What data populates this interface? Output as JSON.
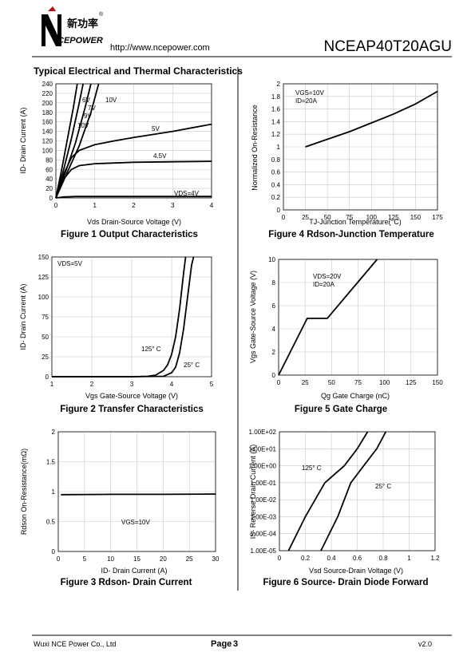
{
  "header": {
    "logo_text": "新功率",
    "logo_brand": "CEPOWER",
    "registered": "®",
    "url": "http://www.ncepower.com",
    "part_number": "NCEAP40T20AGU"
  },
  "section_title": "Typical Electrical and Thermal Characteristics",
  "chart_data": [
    {
      "type": "line",
      "title": "Figure 1 Output Characteristics",
      "xlabel": "Vds Drain-Source Voltage (V)",
      "ylabel": "ID- Drain Current (A)",
      "xlim": [
        0,
        4
      ],
      "ylim": [
        0,
        240
      ],
      "xticks": [
        0,
        1,
        2,
        3,
        4
      ],
      "yticks": [
        0,
        20,
        40,
        60,
        80,
        100,
        120,
        140,
        160,
        180,
        200,
        220,
        240
      ],
      "grid": true,
      "annotations": [
        "10V"
      ],
      "series": [
        {
          "name": "10V",
          "color": "#000000",
          "x": [
            0,
            0.15,
            0.3,
            0.45,
            0.55
          ],
          "values": [
            0,
            60,
            125,
            190,
            240
          ]
        },
        {
          "name": "9V",
          "color": "#000000",
          "x": [
            0,
            0.2,
            0.4,
            0.6,
            0.7
          ],
          "values": [
            0,
            60,
            125,
            200,
            240
          ]
        },
        {
          "name": "7V",
          "color": "#000000",
          "x": [
            0,
            0.25,
            0.5,
            0.75,
            0.9
          ],
          "values": [
            0,
            55,
            115,
            190,
            240
          ]
        },
        {
          "name": "6V",
          "color": "#000000",
          "x": [
            0,
            0.3,
            0.6,
            0.9,
            1.1
          ],
          "values": [
            0,
            55,
            110,
            180,
            240
          ]
        },
        {
          "name": "5V",
          "color": "#000000",
          "x": [
            0,
            0.2,
            0.4,
            0.6,
            1,
            1.5,
            2,
            3,
            4
          ],
          "values": [
            0,
            50,
            85,
            100,
            112,
            120,
            127,
            140,
            155
          ]
        },
        {
          "name": "4.5V",
          "color": "#000000",
          "x": [
            0,
            0.2,
            0.4,
            0.6,
            1,
            2,
            3,
            4
          ],
          "values": [
            0,
            40,
            60,
            68,
            72,
            75,
            76,
            77
          ]
        },
        {
          "name": "VDS=4V",
          "color": "#000000",
          "x": [
            0,
            0.2,
            0.5,
            1,
            2,
            3,
            4
          ],
          "values": [
            0,
            2,
            3,
            3,
            3,
            3,
            3
          ]
        }
      ]
    },
    {
      "type": "line",
      "title": "Figure 2 Transfer Characteristics",
      "xlabel": "Vgs Gate-Source Voltage (V)",
      "ylabel": "ID- Drain Current (A)",
      "xlim": [
        1,
        5
      ],
      "ylim": [
        0,
        150
      ],
      "xticks": [
        1,
        2,
        3,
        4,
        5
      ],
      "yticks": [
        0,
        25,
        50,
        75,
        100,
        125,
        150
      ],
      "grid": true,
      "annotations": [
        "VDS=5V"
      ],
      "series": [
        {
          "name": "125° C",
          "color": "#000000",
          "x": [
            1,
            2,
            3,
            3.4,
            3.6,
            3.8,
            3.9,
            4.0,
            4.1,
            4.2,
            4.3,
            4.35
          ],
          "values": [
            0,
            0,
            0,
            0.5,
            2,
            8,
            15,
            28,
            50,
            85,
            130,
            150
          ]
        },
        {
          "name": "25° C",
          "color": "#000000",
          "x": [
            1,
            2,
            3,
            3.8,
            4,
            4.1,
            4.2,
            4.3,
            4.4,
            4.5,
            4.55
          ],
          "values": [
            0,
            0,
            0,
            0.5,
            5,
            12,
            30,
            60,
            100,
            140,
            150
          ]
        }
      ]
    },
    {
      "type": "line",
      "title": "Figure 3 Rdson- Drain Current",
      "xlabel": "ID- Drain Current (A)",
      "ylabel": "Rdson On-Resistance(mΩ)",
      "xlim": [
        0,
        30
      ],
      "ylim": [
        0,
        2
      ],
      "xticks": [
        0,
        5,
        10,
        15,
        20,
        25,
        30
      ],
      "yticks": [
        0,
        0.5,
        1,
        1.5,
        2
      ],
      "grid": true,
      "annotations": [
        "VGS=10V"
      ],
      "series": [
        {
          "name": "",
          "color": "#000000",
          "x": [
            0.5,
            10,
            20,
            30
          ],
          "values": [
            0.95,
            0.955,
            0.955,
            0.96
          ]
        }
      ]
    },
    {
      "type": "line",
      "title": "Figure 4 Rdson-Junction Temperature",
      "xlabel": "TJ-Junction Temperature(°C)",
      "ylabel": "Normalized On-Resistance",
      "xlim": [
        0,
        175
      ],
      "ylim": [
        0,
        2
      ],
      "xticks": [
        0,
        25,
        50,
        75,
        100,
        125,
        150,
        175
      ],
      "yticks": [
        0,
        0.2,
        0.4,
        0.6,
        0.8,
        1,
        1.2,
        1.4,
        1.6,
        1.8,
        2
      ],
      "grid": true,
      "annotations": [
        "VGS=10V",
        "ID=20A"
      ],
      "series": [
        {
          "name": "",
          "color": "#000000",
          "x": [
            25,
            50,
            75,
            100,
            125,
            150,
            175
          ],
          "values": [
            1.0,
            1.12,
            1.24,
            1.38,
            1.52,
            1.68,
            1.88
          ]
        }
      ]
    },
    {
      "type": "line",
      "title": "Figure 5 Gate Charge",
      "xlabel": "Qg Gate Charge (nC)",
      "ylabel": "Vgs Gate-Source Voltage (V)",
      "xlim": [
        0,
        150
      ],
      "ylim": [
        0,
        10
      ],
      "xticks": [
        0,
        25,
        50,
        75,
        100,
        125,
        150
      ],
      "yticks": [
        0,
        2,
        4,
        6,
        8,
        10
      ],
      "grid": true,
      "annotations": [
        "VDS=20V",
        "ID=20A"
      ],
      "series": [
        {
          "name": "",
          "color": "#000000",
          "x": [
            0,
            27,
            46,
            93
          ],
          "values": [
            0,
            4.9,
            4.9,
            10
          ]
        }
      ]
    },
    {
      "type": "line",
      "title": "Figure 6 Source- Drain Diode Forward",
      "xlabel": "Vsd Source-Drain Voltage (V)",
      "ylabel": "IS- Reverse Drain Current (A)",
      "xlim": [
        0,
        1.2
      ],
      "ylim": [
        1e-05,
        100
      ],
      "log_y": true,
      "xticks": [
        0,
        0.2,
        0.4,
        0.6,
        0.8,
        1,
        1.2
      ],
      "yticks": [
        {
          "value": 1e-05,
          "label": "1.00E-05"
        },
        {
          "value": 0.0001,
          "label": "1.00E-04"
        },
        {
          "value": 0.001,
          "label": "1.00E-03"
        },
        {
          "value": 0.01,
          "label": "1.00E-02"
        },
        {
          "value": 0.1,
          "label": "1.00E-01"
        },
        {
          "value": 1,
          "label": "1.00E+00"
        },
        {
          "value": 10,
          "label": "1.00E+01"
        },
        {
          "value": 100,
          "label": "1.00E+02"
        }
      ],
      "grid": true,
      "annotations": [],
      "series": [
        {
          "name": "125° C",
          "color": "#000000",
          "x": [
            0.07,
            0.2,
            0.35,
            0.5,
            0.6,
            0.68
          ],
          "values": [
            1e-05,
            0.001,
            0.1,
            1,
            10,
            100
          ]
        },
        {
          "name": "25° C",
          "color": "#000000",
          "x": [
            0.32,
            0.45,
            0.55,
            0.65,
            0.75,
            0.82
          ],
          "values": [
            1e-05,
            0.001,
            0.1,
            1,
            10,
            100
          ]
        }
      ]
    }
  ],
  "footer": {
    "company": "Wuxi NCE Power Co., Ltd",
    "page_label": "Page",
    "page_number": "3",
    "version": "v2.0"
  }
}
